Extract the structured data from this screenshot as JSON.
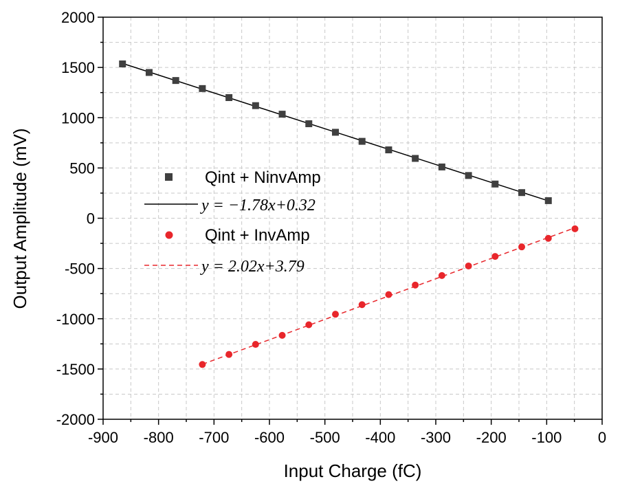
{
  "chart_data": {
    "type": "scatter",
    "xlabel": "Input Charge (fC)",
    "ylabel": "Output Amplitude (mV)",
    "xlim": [
      -900,
      0
    ],
    "ylim": [
      -2000,
      2000
    ],
    "xticks": [
      -900,
      -800,
      -700,
      -600,
      -500,
      -400,
      -300,
      -200,
      -100,
      0
    ],
    "yticks": [
      2000,
      1500,
      1000,
      500,
      0,
      -500,
      -1000,
      -1500,
      -2000
    ],
    "grid": true,
    "legend_position": "center-left",
    "series": [
      {
        "name": "Qint + NinvAmp",
        "marker": "square",
        "color": "#404040",
        "x": [
          -865,
          -817,
          -769,
          -721,
          -673,
          -625,
          -577,
          -529,
          -481,
          -433,
          -385,
          -337,
          -289,
          -241,
          -193,
          -145,
          -97
        ],
        "y": [
          1535,
          1450,
          1370,
          1290,
          1200,
          1120,
          1035,
          940,
          855,
          765,
          680,
          595,
          510,
          425,
          340,
          255,
          175
        ]
      },
      {
        "name": "Qint + InvAmp",
        "marker": "circle",
        "color": "#e8262b",
        "x": [
          -721,
          -673,
          -625,
          -577,
          -529,
          -481,
          -433,
          -385,
          -337,
          -289,
          -241,
          -193,
          -145,
          -97,
          -49
        ],
        "y": [
          -1455,
          -1355,
          -1255,
          -1165,
          -1060,
          -955,
          -860,
          -760,
          -665,
          -570,
          -475,
          -380,
          -285,
          -200,
          -105
        ]
      }
    ],
    "fits": [
      {
        "equation": "y = −1.78x+0.32",
        "style": "solid",
        "color": "#000000",
        "x_range": [
          -865,
          -97
        ],
        "slope": -1.78,
        "intercept": 0.32
      },
      {
        "equation": "y = 2.02x+3.79",
        "style": "dashed",
        "color": "#e8262b",
        "x_range": [
          -721,
          -49
        ],
        "slope": 2.02,
        "intercept": 3.79
      }
    ]
  }
}
